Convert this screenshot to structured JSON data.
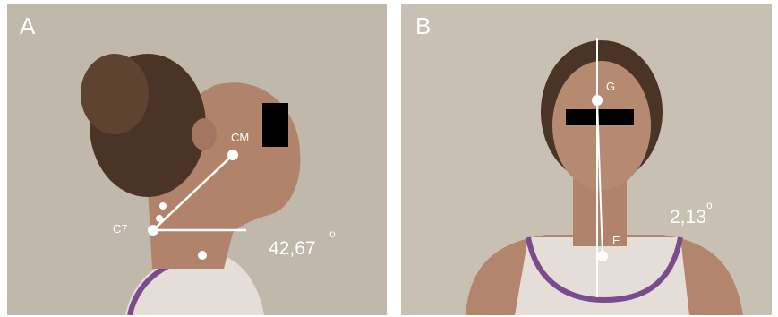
{
  "panels": [
    {
      "label": "A",
      "points": [
        {
          "label": "CM"
        },
        {
          "label": "C7"
        }
      ],
      "angle": {
        "text": "42,67",
        "degree": "o"
      }
    },
    {
      "label": "B",
      "points": [
        {
          "label": "G"
        },
        {
          "label": "E"
        }
      ],
      "angle": {
        "text": "2,13",
        "degree": "o"
      }
    }
  ]
}
